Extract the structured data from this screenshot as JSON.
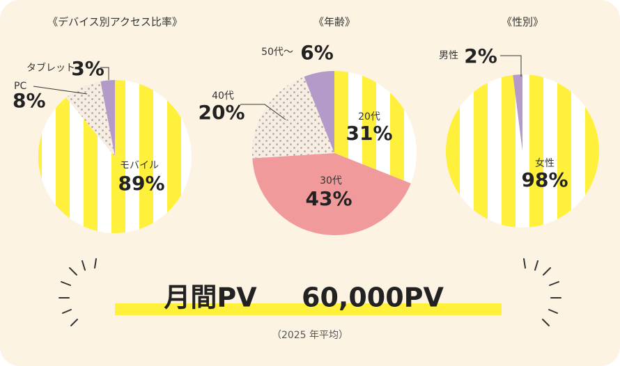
{
  "chart_data": [
    {
      "type": "pie",
      "title": "《デバイス別アクセス比率》",
      "categories": [
        "モバイル",
        "PC",
        "タブレット"
      ],
      "values": [
        89,
        8,
        3
      ],
      "value_labels": [
        "89%",
        "8%",
        "3%"
      ],
      "colors": [
        "#fff03c",
        "#c9b8a8",
        "#b39ac8"
      ]
    },
    {
      "type": "pie",
      "title": "《年齢》",
      "categories": [
        "20代",
        "30代",
        "40代",
        "50代～"
      ],
      "values": [
        31,
        43,
        20,
        6
      ],
      "value_labels": [
        "31%",
        "43%",
        "20%",
        "6%"
      ],
      "colors": [
        "#fff03c",
        "#f09a9c",
        "#c9b8a8",
        "#b39ac8"
      ]
    },
    {
      "type": "pie",
      "title": "《性別》",
      "categories": [
        "女性",
        "男性"
      ],
      "values": [
        98,
        2
      ],
      "value_labels": [
        "98%",
        "2%"
      ],
      "colors": [
        "#fff03c",
        "#b39ac8"
      ]
    }
  ],
  "summary": {
    "label": "月間PV",
    "value": "60,000PV",
    "note": "（2025 年平均）"
  }
}
